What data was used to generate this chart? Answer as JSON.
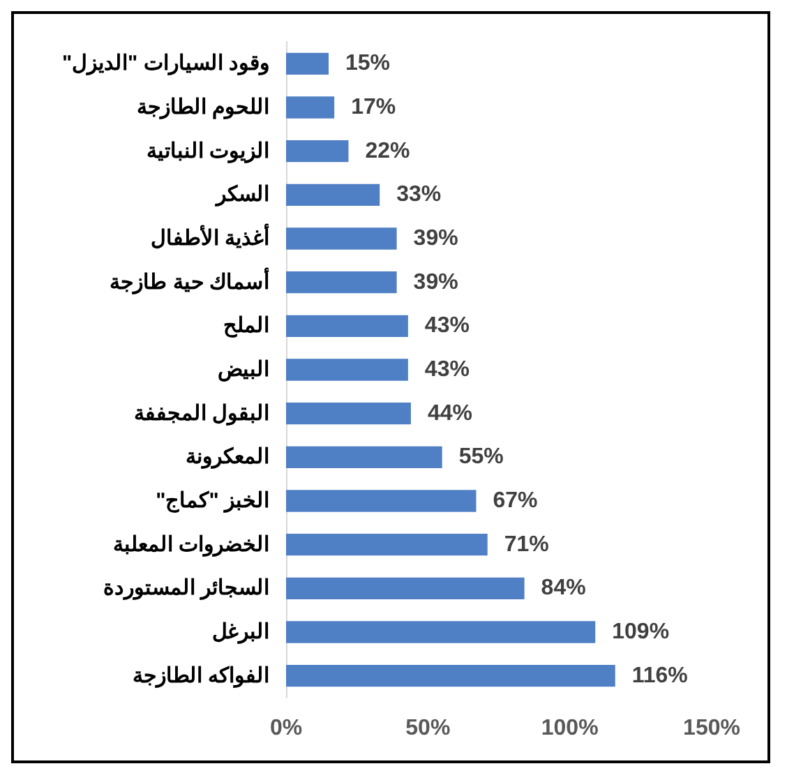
{
  "chart_data": {
    "type": "bar",
    "orientation": "horizontal",
    "categories": [
      "وقود السيارات \"الديزل\"",
      "اللحوم الطازجة",
      "الزيوت النباتية",
      "السكر",
      "أغذية الأطفال",
      "أسماك حية طازجة",
      "الملح",
      "البيض",
      "البقول المجففة",
      "المعكرونة",
      "الخبز \"كماج\"",
      "الخضروات المعلبة",
      "السجائر المستوردة",
      "البرغل",
      "الفواكه الطازجة"
    ],
    "values": [
      15,
      17,
      22,
      33,
      39,
      39,
      43,
      43,
      44,
      55,
      67,
      71,
      84,
      109,
      116
    ],
    "value_labels": [
      "15%",
      "17%",
      "22%",
      "33%",
      "39%",
      "39%",
      "43%",
      "43%",
      "44%",
      "55%",
      "67%",
      "71%",
      "84%",
      "109%",
      "116%"
    ],
    "color": "#4f7fc4",
    "xlim": [
      0,
      150
    ],
    "xticks": [
      {
        "value": 0,
        "label": "0%"
      },
      {
        "value": 50,
        "label": "50%"
      },
      {
        "value": 100,
        "label": "100%"
      },
      {
        "value": 150,
        "label": "150%"
      }
    ],
    "grid": false
  }
}
